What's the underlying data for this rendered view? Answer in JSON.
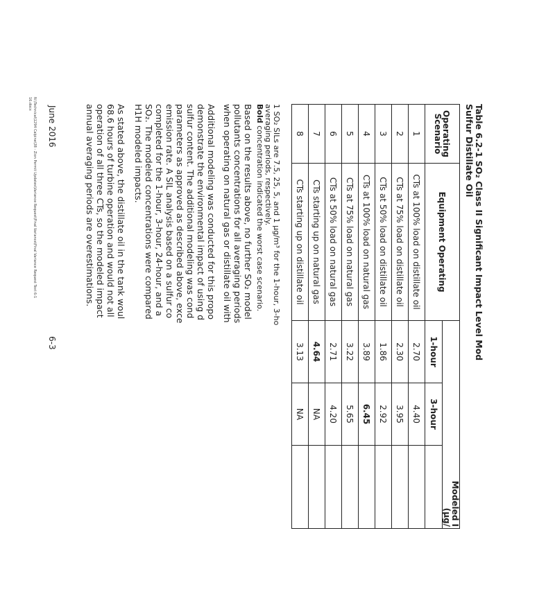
{
  "title": {
    "line1": "Table 6.2-1 SO₂ Class II Significant Impact Level Mod",
    "line2": "Sulfur Distillate Oil"
  },
  "table": {
    "headers": {
      "scenario": "Operating Scenario",
      "equipment": "Equipment Operating",
      "modeled": "Modeled I",
      "units": "(µg/",
      "h1": "1-hour",
      "h3": "3-hour"
    },
    "rows": [
      {
        "scenario": "1",
        "equipment": "CTs at 100% load on distillate oil",
        "h1": "2.70",
        "h3": "4.40",
        "bold_h1": false,
        "bold_h3": false
      },
      {
        "scenario": "2",
        "equipment": "CTs at 75% load on distillate oil",
        "h1": "2.30",
        "h3": "3.95",
        "bold_h1": false,
        "bold_h3": false
      },
      {
        "scenario": "3",
        "equipment": "CTs at 50% load on distillate oil",
        "h1": "1.86",
        "h3": "2.92",
        "bold_h1": false,
        "bold_h3": false
      },
      {
        "scenario": "4",
        "equipment": "CTs at 100% load on natural gas",
        "h1": "3.89",
        "h3": "6.45",
        "bold_h1": false,
        "bold_h3": true
      },
      {
        "scenario": "5",
        "equipment": "CTs at 75% load on natural gas",
        "h1": "3.22",
        "h3": "5.65",
        "bold_h1": false,
        "bold_h3": false
      },
      {
        "scenario": "6",
        "equipment": "CTs at 50% load on natural gas",
        "h1": "2.71",
        "h3": "4.20",
        "bold_h1": false,
        "bold_h3": false
      },
      {
        "scenario": "7",
        "equipment": "CTs starting up on natural gas",
        "h1": "4.64",
        "h3": "NA",
        "bold_h1": true,
        "bold_h3": false
      },
      {
        "scenario": "8",
        "equipment": "CTs starting up on distillate oil",
        "h1": "3.13",
        "h3": "NA",
        "bold_h1": false,
        "bold_h3": false
      }
    ]
  },
  "footnotes": {
    "line1": "1 SO₂ SILs are 7.5, 25, 5, and 1 µg/m³ for the 1-hour, 3-ho",
    "line2": "averaging periods, respectively.",
    "line3_bold": "Bold",
    "line3_rest": " concentration indicated the worst case scenario."
  },
  "paragraphs": [
    [
      "Based on the results above, no further SO₂ model",
      "pollutants concentrations for all averaging periods",
      "when operating on natural gas or distillate oil with"
    ],
    [
      "Additional modeling was conducted for this propo",
      "demonstrate the environmental impact of using d",
      "sulfur content. The additional modeling was cond",
      "parameters as approved as described above, exce",
      "emission rate. A SIL analysis based on a sulfur co",
      "completed for the 1-hour, 3-hour, 24-hour, and a",
      "SO₂. The modeled concentrations were compared",
      "H1H modeled impacts."
    ],
    [
      "As stated above, the distillate oil in the tank woul",
      "68.6 hours of turbine operation and would not all",
      "operation of all three CTs, so the modeled impact",
      "annual averaging periods are overestimations."
    ]
  ],
  "footer": {
    "date": "June 2016",
    "page": "6-3",
    "path_line1": "N:\\Technical\\1294 Calpine\\38 - Zion Permit Updates\\Variance Request\\Final Variance\\Final Variance Request Text 6-1",
    "path_line2": "16.docx"
  }
}
